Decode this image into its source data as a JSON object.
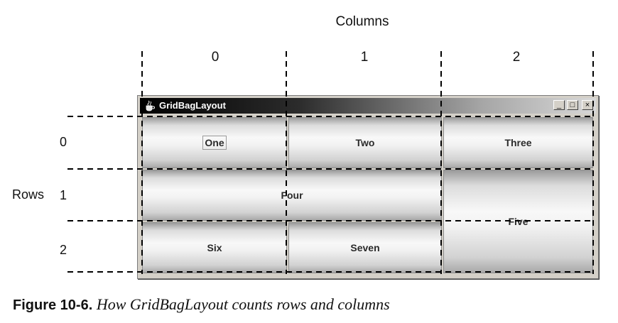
{
  "header": {
    "columns_label": "Columns",
    "column_numbers": [
      "0",
      "1",
      "2"
    ],
    "rows_label": "Rows",
    "row_numbers": [
      "0",
      "1",
      "2"
    ]
  },
  "window": {
    "title": "GridBagLayout",
    "controls": {
      "minimize": "_",
      "maximize": "□",
      "close": "×"
    },
    "buttons": {
      "one": "One",
      "two": "Two",
      "three": "Three",
      "four": "Four",
      "five": "Five",
      "six": "Six",
      "seven": "Seven"
    }
  },
  "caption": {
    "label": "Figure 10-6.",
    "text": "How GridBagLayout counts rows and columns"
  },
  "colors": {
    "title_bar_start": "#000000",
    "title_bar_end": "#d8d8d8",
    "window_face": "#d4d0c8",
    "grid_lines": "#000000"
  },
  "icons": {
    "app": "java-cup-icon"
  }
}
